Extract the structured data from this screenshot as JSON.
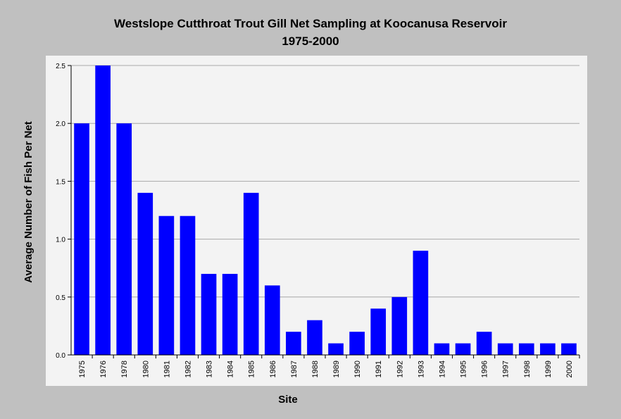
{
  "chart_data": {
    "type": "bar",
    "title": "Westslope Cutthroat Trout Gill Net Sampling at Koocanusa Reservoir",
    "subtitle": "1975-2000",
    "xlabel": "Site",
    "ylabel": "Average Number of Fish Per Net",
    "ylim": [
      0,
      2.5
    ],
    "yticks": [
      "0.0",
      "0.5",
      "1.0",
      "1.5",
      "2.0",
      "2.5"
    ],
    "grid": "horizontal",
    "bar_color": "#0000ff",
    "categories": [
      "1975",
      "1976",
      "1978",
      "1980",
      "1981",
      "1982",
      "1983",
      "1984",
      "1985",
      "1986",
      "1987",
      "1988",
      "1989",
      "1990",
      "1991",
      "1992",
      "1993",
      "1994",
      "1995",
      "1996",
      "1997",
      "1998",
      "1999",
      "2000"
    ],
    "values": [
      2.0,
      2.5,
      2.0,
      1.4,
      1.2,
      1.2,
      0.7,
      0.7,
      1.4,
      0.6,
      0.2,
      0.3,
      0.1,
      0.2,
      0.4,
      0.5,
      0.9,
      0.1,
      0.1,
      0.2,
      0.1,
      0.1,
      0.1,
      0.1
    ]
  }
}
